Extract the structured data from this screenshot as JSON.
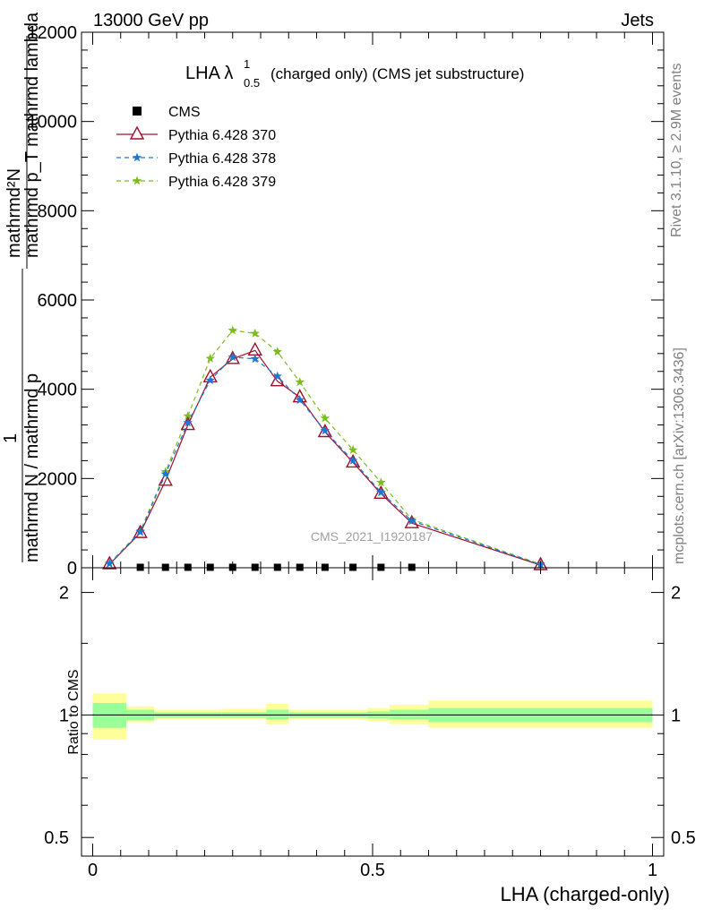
{
  "header": {
    "left": "13000 GeV pp",
    "right": "Jets"
  },
  "side": {
    "rivet": "Rivet 3.1.10, ≥ 2.9M events",
    "mcplots": "mcplots.cern.ch [arXiv:1306.3436]"
  },
  "colors": {
    "cms": "#000000",
    "py370": "#a0102a",
    "py378": "#1f77d4",
    "py379": "#7bbd1a",
    "band_outer": "#ffff99",
    "band_inner": "#99ff99"
  },
  "chart_data": [
    {
      "type": "line",
      "title": "LHA λ",
      "title_sup": "1",
      "title_sub": "0.5",
      "title_rest": "(charged only) (CMS jet substructure)",
      "ylabel": "mathrmd N / mathrmd p_T mathrmd lambda",
      "ylabel_num": "mathrmd²N",
      "ylabel_den": "mathrmd p_T mathrmd lambda",
      "ylabel_frac_top": "1",
      "ylabel_frac_bottom": "mathrmd N / mathrmd p",
      "watermark": "CMS_2021_I1920187",
      "xlim": [
        -0.02,
        1.02
      ],
      "ylim": [
        0,
        12000
      ],
      "yticks": [
        "0",
        "2000",
        "4000",
        "6000",
        "8000",
        "10000",
        "12000"
      ],
      "ytick_values": [
        0,
        2000,
        4000,
        6000,
        8000,
        10000,
        12000
      ],
      "legend_position": "top-left",
      "series": [
        {
          "name": "CMS",
          "marker": "square",
          "x": [
            0.085,
            0.13,
            0.17,
            0.21,
            0.25,
            0.29,
            0.33,
            0.37,
            0.415,
            0.465,
            0.515,
            0.57
          ],
          "y": [
            10,
            10,
            10,
            10,
            10,
            10,
            10,
            10,
            10,
            10,
            10,
            10
          ]
        },
        {
          "name": "Pythia 6.428 370",
          "marker": "triangle",
          "x": [
            0.03,
            0.085,
            0.13,
            0.17,
            0.21,
            0.25,
            0.29,
            0.33,
            0.37,
            0.415,
            0.465,
            0.515,
            0.57,
            0.8
          ],
          "y": [
            80,
            780,
            1950,
            3200,
            4270,
            4680,
            4870,
            4180,
            3820,
            3040,
            2360,
            1660,
            1000,
            60
          ]
        },
        {
          "name": "Pythia 6.428 378",
          "marker": "star",
          "x": [
            0.03,
            0.085,
            0.13,
            0.17,
            0.21,
            0.25,
            0.29,
            0.33,
            0.37,
            0.415,
            0.465,
            0.515,
            0.57,
            0.8
          ],
          "y": [
            90,
            800,
            2100,
            3250,
            4200,
            4720,
            4680,
            4290,
            3760,
            3070,
            2400,
            1690,
            1050,
            70
          ]
        },
        {
          "name": "Pythia 6.428 379",
          "marker": "star",
          "x": [
            0.03,
            0.085,
            0.13,
            0.17,
            0.21,
            0.25,
            0.29,
            0.33,
            0.37,
            0.415,
            0.465,
            0.515,
            0.57,
            0.8
          ],
          "y": [
            100,
            820,
            2150,
            3400,
            4690,
            5320,
            5250,
            4840,
            4160,
            3350,
            2640,
            1910,
            1080,
            80
          ]
        }
      ]
    },
    {
      "type": "area",
      "ylabel": "Ratio to CMS",
      "xlabel": "LHA (charged-only)",
      "xticks": [
        "0",
        "0.5",
        "1"
      ],
      "xtick_values": [
        0,
        0.5,
        1
      ],
      "yticks": [
        "0.5",
        "1",
        "2"
      ],
      "ytick_values": [
        0.5,
        1,
        2
      ],
      "ylim": [
        0.45,
        2.3
      ],
      "scale": "log",
      "bins": [
        {
          "x0": 0.0,
          "x1": 0.06,
          "inner": [
            0.93,
            1.07
          ],
          "outer": [
            0.87,
            1.13
          ]
        },
        {
          "x0": 0.06,
          "x1": 0.11,
          "inner": [
            0.97,
            1.03
          ],
          "outer": [
            0.96,
            1.05
          ]
        },
        {
          "x0": 0.11,
          "x1": 0.23,
          "inner": [
            0.985,
            1.015
          ],
          "outer": [
            0.975,
            1.03
          ]
        },
        {
          "x0": 0.23,
          "x1": 0.31,
          "inner": [
            0.985,
            1.015
          ],
          "outer": [
            0.975,
            1.035
          ]
        },
        {
          "x0": 0.31,
          "x1": 0.35,
          "inner": [
            0.975,
            1.03
          ],
          "outer": [
            0.95,
            1.065
          ]
        },
        {
          "x0": 0.35,
          "x1": 0.49,
          "inner": [
            0.985,
            1.015
          ],
          "outer": [
            0.975,
            1.03
          ]
        },
        {
          "x0": 0.49,
          "x1": 0.53,
          "inner": [
            0.98,
            1.02
          ],
          "outer": [
            0.965,
            1.04
          ]
        },
        {
          "x0": 0.53,
          "x1": 0.6,
          "inner": [
            0.975,
            1.03
          ],
          "outer": [
            0.95,
            1.06
          ]
        },
        {
          "x0": 0.6,
          "x1": 1.0,
          "inner": [
            0.96,
            1.04
          ],
          "outer": [
            0.93,
            1.085
          ]
        }
      ]
    }
  ]
}
